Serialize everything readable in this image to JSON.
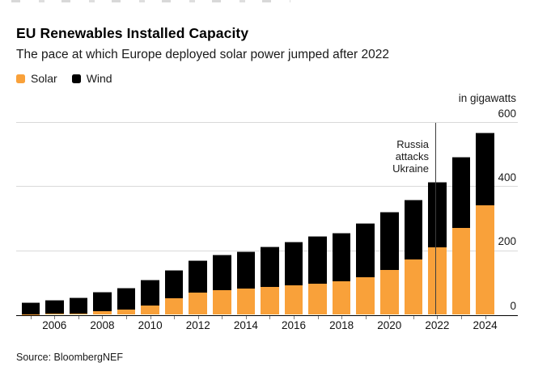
{
  "header": {
    "title": "EU Renewables Installed Capacity",
    "subtitle": "The pace at which Europe deployed solar power jumped after 2022"
  },
  "legend": [
    {
      "label": "Solar",
      "color": "#F9A13A"
    },
    {
      "label": "Wind",
      "color": "#000000"
    }
  ],
  "unit_label": "in gigawatts",
  "annotation": {
    "lines": [
      "Russia",
      "attacks",
      "Ukraine"
    ],
    "year": 2022
  },
  "source": "Source: BloombergNEF",
  "colors": {
    "solar": "#F9A13A",
    "wind": "#000000",
    "gridline": "#D9D9D9",
    "axis": "#000000",
    "annotation_line": "#3D3D3D"
  },
  "chart_data": {
    "type": "bar",
    "stacked": true,
    "title": "EU Renewables Installed Capacity",
    "subtitle": "The pace at which Europe deployed solar power jumped after 2022",
    "ylabel": "in gigawatts",
    "ylim": [
      0,
      600
    ],
    "y_ticks": [
      0,
      200,
      400,
      600
    ],
    "grid": true,
    "legend_position": "top-left",
    "categories": [
      2005,
      2006,
      2007,
      2008,
      2009,
      2010,
      2011,
      2012,
      2013,
      2014,
      2015,
      2016,
      2017,
      2018,
      2019,
      2020,
      2021,
      2022,
      2023,
      2024
    ],
    "x_tick_labels": [
      2006,
      2008,
      2010,
      2012,
      2014,
      2016,
      2018,
      2020,
      2022,
      2024
    ],
    "series": [
      {
        "name": "Solar",
        "color": "#F9A13A",
        "values": [
          2,
          3,
          5,
          11,
          16,
          30,
          52,
          69,
          76,
          82,
          87,
          92,
          97,
          104,
          117,
          140,
          173,
          211,
          272,
          342
        ]
      },
      {
        "name": "Wind",
        "color": "#000000",
        "values": [
          36,
          43,
          50,
          61,
          68,
          80,
          89,
          100,
          111,
          116,
          127,
          136,
          148,
          153,
          168,
          181,
          186,
          205,
          220,
          227
        ]
      }
    ],
    "annotation": {
      "text": "Russia attacks Ukraine",
      "year": 2022
    }
  }
}
